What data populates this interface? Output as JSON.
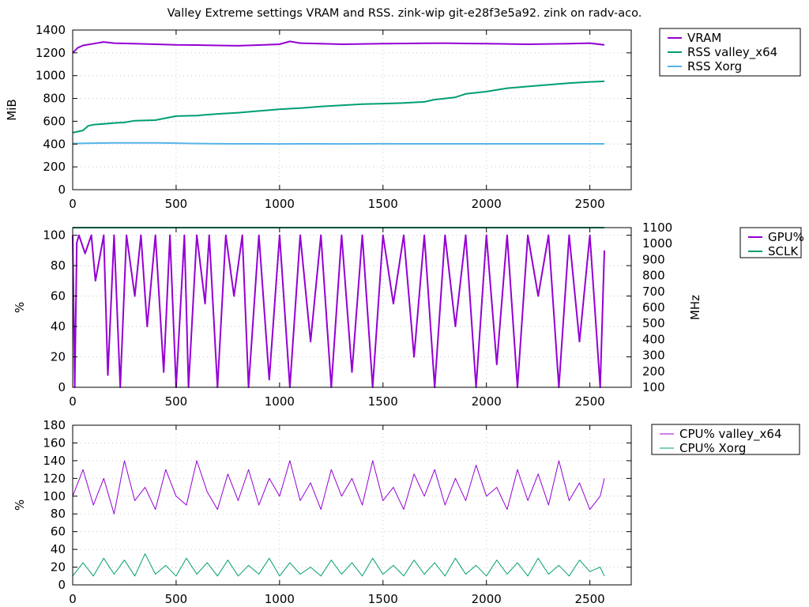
{
  "page": {
    "title": "Valley Extreme settings VRAM and RSS. zink-wip git-e28f3e5a92. zink on radv-aco."
  },
  "chart_data": [
    {
      "type": "line",
      "title": "Valley Extreme settings VRAM and RSS. zink-wip git-e28f3e5a92. zink on radv-aco.",
      "xlabel": "",
      "ylabel": "MiB",
      "xlim": [
        0,
        2700
      ],
      "ylim": [
        0,
        1400
      ],
      "xticks": [
        0,
        500,
        1000,
        1500,
        2000,
        2500
      ],
      "yticks": [
        0,
        200,
        400,
        600,
        800,
        1000,
        1200,
        1400
      ],
      "grid": true,
      "legend": "outside-top-right",
      "series": [
        {
          "name": "VRAM",
          "color": "#9400d3",
          "x": [
            0,
            25,
            50,
            100,
            150,
            200,
            300,
            400,
            500,
            600,
            700,
            800,
            900,
            1000,
            1050,
            1100,
            1200,
            1300,
            1400,
            1500,
            1600,
            1700,
            1800,
            1900,
            2000,
            2100,
            2200,
            2300,
            2400,
            2500,
            2570
          ],
          "y": [
            1200,
            1245,
            1265,
            1280,
            1295,
            1285,
            1280,
            1275,
            1270,
            1268,
            1265,
            1262,
            1268,
            1275,
            1300,
            1285,
            1280,
            1275,
            1278,
            1280,
            1282,
            1284,
            1285,
            1282,
            1280,
            1278,
            1275,
            1278,
            1280,
            1285,
            1270
          ]
        },
        {
          "name": "RSS valley_x64",
          "color": "#009e73",
          "x": [
            0,
            50,
            75,
            100,
            200,
            250,
            300,
            400,
            500,
            600,
            700,
            800,
            900,
            1000,
            1100,
            1200,
            1300,
            1400,
            1500,
            1600,
            1700,
            1750,
            1800,
            1850,
            1900,
            2000,
            2100,
            2200,
            2300,
            2400,
            2500,
            2570
          ],
          "y": [
            500,
            520,
            560,
            570,
            585,
            590,
            605,
            610,
            645,
            650,
            665,
            675,
            690,
            705,
            715,
            730,
            740,
            750,
            755,
            760,
            770,
            790,
            800,
            810,
            840,
            860,
            890,
            905,
            920,
            935,
            945,
            950
          ]
        },
        {
          "name": "RSS Xorg",
          "color": "#56b4e9",
          "x": [
            0,
            100,
            200,
            300,
            400,
            500,
            600,
            700,
            800,
            900,
            1000,
            1100,
            1200,
            1300,
            1400,
            1500,
            1600,
            1700,
            1800,
            1900,
            2000,
            2100,
            2200,
            2300,
            2400,
            2500,
            2570
          ],
          "y": [
            405,
            408,
            410,
            410,
            410,
            408,
            405,
            403,
            402,
            402,
            401,
            402,
            402,
            401,
            402,
            403,
            402,
            402,
            402,
            402,
            402,
            402,
            402,
            402,
            402,
            402,
            402
          ]
        }
      ]
    },
    {
      "type": "line",
      "xlabel": "",
      "ylabel": "%",
      "y2label": "MHz",
      "xlim": [
        0,
        2700
      ],
      "ylim": [
        0,
        105
      ],
      "y2lim": [
        100,
        1100
      ],
      "xticks": [
        0,
        500,
        1000,
        1500,
        2000,
        2500
      ],
      "yticks": [
        0,
        20,
        40,
        60,
        80,
        100
      ],
      "y2ticks": [
        100,
        200,
        300,
        400,
        500,
        600,
        700,
        800,
        900,
        1000,
        1100
      ],
      "grid": true,
      "legend": "outside-top-right",
      "series": [
        {
          "name": "GPU%",
          "color": "#9400d3",
          "x": [
            0,
            10,
            20,
            30,
            60,
            90,
            110,
            150,
            170,
            200,
            230,
            260,
            300,
            330,
            360,
            400,
            440,
            470,
            500,
            540,
            560,
            600,
            640,
            660,
            700,
            740,
            780,
            820,
            850,
            900,
            950,
            1000,
            1050,
            1100,
            1150,
            1200,
            1250,
            1300,
            1350,
            1400,
            1450,
            1500,
            1550,
            1600,
            1650,
            1700,
            1750,
            1800,
            1850,
            1900,
            1950,
            2000,
            2050,
            2100,
            2150,
            2200,
            2250,
            2300,
            2350,
            2400,
            2450,
            2500,
            2550,
            2570
          ],
          "y": [
            100,
            0,
            95,
            100,
            88,
            100,
            70,
            100,
            8,
            100,
            0,
            100,
            60,
            100,
            40,
            100,
            10,
            100,
            0,
            100,
            0,
            100,
            55,
            100,
            0,
            100,
            60,
            100,
            0,
            100,
            5,
            100,
            0,
            100,
            30,
            100,
            0,
            100,
            10,
            100,
            0,
            100,
            55,
            100,
            20,
            100,
            0,
            100,
            40,
            100,
            0,
            100,
            15,
            100,
            0,
            100,
            60,
            100,
            0,
            100,
            30,
            100,
            0,
            90
          ]
        },
        {
          "name": "SCLK",
          "color": "#009e73",
          "x": [
            0,
            500,
            1000,
            1500,
            2000,
            2500,
            2570
          ],
          "y": [
            1100,
            1100,
            1100,
            1100,
            1100,
            1100,
            1100
          ]
        }
      ]
    },
    {
      "type": "line",
      "xlabel": "",
      "ylabel": "%",
      "xlim": [
        0,
        2700
      ],
      "ylim": [
        0,
        180
      ],
      "xticks": [
        0,
        500,
        1000,
        1500,
        2000,
        2500
      ],
      "yticks": [
        0,
        20,
        40,
        60,
        80,
        100,
        120,
        140,
        160,
        180
      ],
      "grid": true,
      "legend": "outside-top-right",
      "series": [
        {
          "name": "CPU% valley_x64",
          "color": "#9400d3",
          "x": [
            0,
            50,
            100,
            150,
            200,
            250,
            300,
            350,
            400,
            450,
            500,
            550,
            600,
            650,
            700,
            750,
            800,
            850,
            900,
            950,
            1000,
            1050,
            1100,
            1150,
            1200,
            1250,
            1300,
            1350,
            1400,
            1450,
            1500,
            1550,
            1600,
            1650,
            1700,
            1750,
            1800,
            1850,
            1900,
            1950,
            2000,
            2050,
            2100,
            2150,
            2200,
            2250,
            2300,
            2350,
            2400,
            2450,
            2500,
            2550,
            2570
          ],
          "y": [
            100,
            130,
            90,
            120,
            80,
            140,
            95,
            110,
            85,
            130,
            100,
            90,
            140,
            105,
            85,
            125,
            95,
            130,
            90,
            120,
            100,
            140,
            95,
            115,
            85,
            130,
            100,
            120,
            90,
            140,
            95,
            110,
            85,
            125,
            100,
            130,
            90,
            120,
            95,
            135,
            100,
            110,
            85,
            130,
            95,
            125,
            90,
            140,
            95,
            115,
            85,
            100,
            120
          ]
        },
        {
          "name": "CPU% Xorg",
          "color": "#009e73",
          "x": [
            0,
            50,
            100,
            150,
            200,
            250,
            300,
            350,
            400,
            450,
            500,
            550,
            600,
            650,
            700,
            750,
            800,
            850,
            900,
            950,
            1000,
            1050,
            1100,
            1150,
            1200,
            1250,
            1300,
            1350,
            1400,
            1450,
            1500,
            1550,
            1600,
            1650,
            1700,
            1750,
            1800,
            1850,
            1900,
            1950,
            2000,
            2050,
            2100,
            2150,
            2200,
            2250,
            2300,
            2350,
            2400,
            2450,
            2500,
            2550,
            2570
          ],
          "y": [
            10,
            25,
            10,
            30,
            12,
            28,
            10,
            35,
            12,
            22,
            10,
            30,
            12,
            25,
            10,
            28,
            10,
            22,
            12,
            30,
            10,
            25,
            12,
            20,
            10,
            28,
            12,
            25,
            10,
            30,
            12,
            22,
            10,
            28,
            12,
            25,
            10,
            30,
            12,
            22,
            10,
            28,
            12,
            25,
            10,
            30,
            12,
            22,
            10,
            28,
            15,
            20,
            10
          ]
        }
      ]
    }
  ]
}
